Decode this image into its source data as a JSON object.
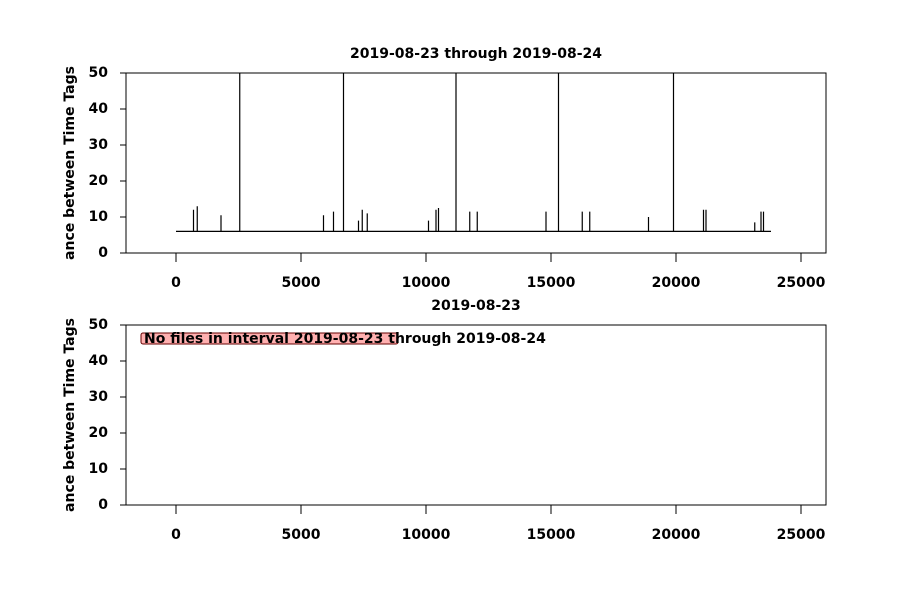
{
  "chart_data": [
    {
      "type": "line",
      "title": "2019-08-23 through 2019-08-24",
      "ylabel": "ance between Time Tags",
      "color": "#000000",
      "x": [
        0,
        700,
        700,
        700,
        850,
        850,
        850,
        1800,
        1800,
        1800,
        2550,
        2550,
        2550,
        5900,
        5900,
        5900,
        6300,
        6300,
        6300,
        6700,
        6700,
        6700,
        7300,
        7300,
        7300,
        7450,
        7450,
        7450,
        7650,
        7650,
        7650,
        10100,
        10100,
        10100,
        10400,
        10400,
        10400,
        10500,
        10500,
        10500,
        11200,
        11200,
        11200,
        11750,
        11750,
        11750,
        12050,
        12050,
        12050,
        14800,
        14800,
        14800,
        15300,
        15300,
        15300,
        16250,
        16250,
        16250,
        16550,
        16550,
        16550,
        18900,
        18900,
        18900,
        19900,
        19900,
        19900,
        21100,
        21100,
        21100,
        21200,
        21200,
        21200,
        23150,
        23150,
        23150,
        23400,
        23400,
        23400,
        23500,
        23500,
        23500,
        23800
      ],
      "values": [
        6,
        6,
        12,
        6,
        6,
        13,
        6,
        6,
        10.5,
        6,
        6,
        50,
        6,
        6,
        10.5,
        6,
        6,
        11.5,
        6,
        6,
        50,
        6,
        6,
        9,
        6,
        6,
        12,
        6,
        6,
        11,
        6,
        6,
        9,
        6,
        6,
        12,
        6,
        6,
        12.5,
        6,
        6,
        50,
        6,
        6,
        11.5,
        6,
        6,
        11.5,
        6,
        6,
        11.5,
        6,
        6,
        50,
        6,
        6,
        11.5,
        6,
        6,
        11.5,
        6,
        6,
        10,
        6,
        6,
        50,
        6,
        6,
        12,
        6,
        6,
        12,
        6,
        6,
        8.5,
        6,
        6,
        11.5,
        6,
        6,
        11.5,
        6,
        6
      ],
      "xlim": [
        -2000,
        26000
      ],
      "xticks": [
        0,
        5000,
        10000,
        15000,
        20000,
        25000
      ],
      "ylim": [
        0,
        50
      ],
      "yticks": [
        0,
        10,
        20,
        30,
        40,
        50
      ]
    },
    {
      "type": "line",
      "title": "2019-08-23",
      "ylabel": "ance between Time Tags",
      "annotation": "No files in interval 2019-08-23 through 2019-08-24",
      "xlim": [
        -2000,
        26000
      ],
      "xticks": [
        0,
        5000,
        10000,
        15000,
        20000,
        25000
      ],
      "ylim": [
        0,
        50
      ],
      "yticks": [
        0,
        10,
        20,
        30,
        40,
        50
      ]
    }
  ]
}
